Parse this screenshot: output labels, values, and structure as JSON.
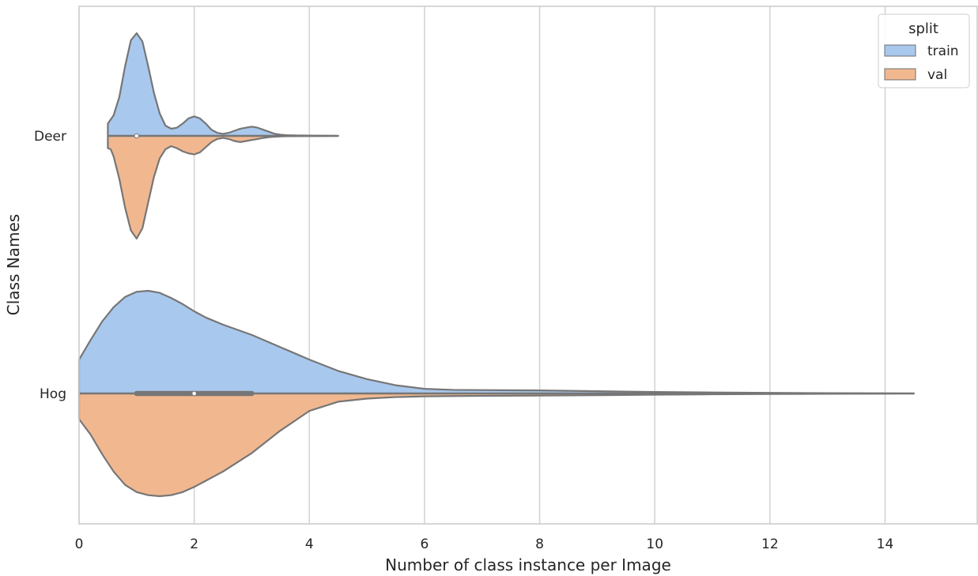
{
  "chart_data": {
    "type": "violin",
    "orientation": "horizontal",
    "split": true,
    "xlabel": "Number of class instance per Image",
    "ylabel": "Class Names",
    "xlim": [
      0,
      15.6
    ],
    "xticks": [
      0,
      2,
      4,
      6,
      8,
      10,
      12,
      14
    ],
    "xtick_labels": [
      "0",
      "2",
      "4",
      "6",
      "8",
      "10",
      "12",
      "14"
    ],
    "grid": "vertical",
    "categories": [
      "Deer",
      "Hog"
    ],
    "legend": {
      "title": "split",
      "placement": "top-right",
      "entries": [
        {
          "label": "train",
          "color": "#a9c8ee"
        },
        {
          "label": "val",
          "color": "#f1b890"
        }
      ]
    },
    "series": [
      {
        "name": "train",
        "color": "#a9c8ee",
        "violins": [
          {
            "category": "Deer",
            "range": [
              0.5,
              4.5
            ],
            "density_x": [
              0.5,
              0.5,
              0.6,
              0.7,
              0.8,
              0.9,
              1.0,
              1.1,
              1.2,
              1.3,
              1.4,
              1.5,
              1.6,
              1.7,
              1.8,
              1.9,
              2.0,
              2.1,
              2.2,
              2.3,
              2.4,
              2.5,
              2.6,
              2.7,
              2.8,
              2.9,
              3.0,
              3.1,
              3.2,
              3.3,
              3.4,
              3.5,
              3.6,
              3.8,
              4.0,
              4.2,
              4.4,
              4.5
            ],
            "density_w": [
              0.0,
              0.12,
              0.2,
              0.38,
              0.68,
              0.93,
              1.0,
              0.92,
              0.68,
              0.42,
              0.22,
              0.1,
              0.07,
              0.08,
              0.12,
              0.17,
              0.19,
              0.17,
              0.12,
              0.06,
              0.03,
              0.02,
              0.03,
              0.05,
              0.07,
              0.08,
              0.09,
              0.08,
              0.06,
              0.04,
              0.02,
              0.012,
              0.007,
              0.004,
              0.003,
              0.002,
              0.001,
              0.0
            ]
          },
          {
            "category": "Hog",
            "range": [
              0.0,
              14.5
            ],
            "density_x": [
              0.0,
              0.2,
              0.4,
              0.6,
              0.8,
              1.0,
              1.2,
              1.4,
              1.6,
              1.8,
              2.0,
              2.2,
              2.5,
              3.0,
              3.5,
              4.0,
              4.5,
              5.0,
              5.5,
              6.0,
              6.5,
              7.0,
              8.0,
              9.0,
              10.0,
              11.0,
              12.0,
              13.0,
              14.0,
              14.5
            ],
            "density_w": [
              0.33,
              0.52,
              0.7,
              0.84,
              0.94,
              0.99,
              1.0,
              0.98,
              0.93,
              0.87,
              0.8,
              0.74,
              0.67,
              0.57,
              0.45,
              0.33,
              0.22,
              0.14,
              0.08,
              0.045,
              0.035,
              0.033,
              0.03,
              0.022,
              0.015,
              0.01,
              0.006,
              0.003,
              0.001,
              0.0
            ]
          }
        ]
      },
      {
        "name": "val",
        "color": "#f1b890",
        "violins": [
          {
            "category": "Deer",
            "range": [
              0.5,
              4.5
            ],
            "density_x": [
              0.5,
              0.5,
              0.55,
              0.6,
              0.7,
              0.8,
              0.9,
              1.0,
              1.1,
              1.2,
              1.3,
              1.4,
              1.5,
              1.6,
              1.7,
              1.8,
              1.9,
              2.0,
              2.1,
              2.2,
              2.3,
              2.4,
              2.5,
              2.6,
              2.7,
              2.8,
              2.9,
              3.0,
              3.1,
              3.2,
              3.3,
              3.4,
              3.5,
              3.6,
              3.8,
              4.0,
              4.2,
              4.4,
              4.5
            ],
            "density_w": [
              0.0,
              0.12,
              0.13,
              0.2,
              0.42,
              0.7,
              0.92,
              1.0,
              0.9,
              0.65,
              0.4,
              0.22,
              0.13,
              0.1,
              0.12,
              0.15,
              0.17,
              0.18,
              0.16,
              0.11,
              0.06,
              0.03,
              0.02,
              0.03,
              0.05,
              0.06,
              0.05,
              0.04,
              0.03,
              0.02,
              0.012,
              0.008,
              0.005,
              0.003,
              0.002,
              0.001,
              0.0007,
              0.0003,
              0.0
            ]
          },
          {
            "category": "Hog",
            "range": [
              0.0,
              14.5
            ],
            "density_x": [
              0.0,
              0.2,
              0.4,
              0.6,
              0.8,
              1.0,
              1.2,
              1.4,
              1.6,
              1.8,
              2.0,
              2.2,
              2.5,
              3.0,
              3.5,
              4.0,
              4.5,
              5.0,
              5.5,
              6.0,
              6.5,
              7.0,
              8.0,
              9.0,
              10.0,
              11.0,
              12.0,
              13.0,
              14.0,
              14.5
            ],
            "density_w": [
              0.25,
              0.4,
              0.59,
              0.76,
              0.89,
              0.96,
              0.99,
              1.0,
              0.99,
              0.96,
              0.91,
              0.85,
              0.76,
              0.58,
              0.36,
              0.17,
              0.08,
              0.05,
              0.035,
              0.028,
              0.025,
              0.023,
              0.02,
              0.017,
              0.012,
              0.008,
              0.005,
              0.003,
              0.001,
              0.0
            ]
          }
        ]
      }
    ],
    "box": [
      {
        "category": "Deer",
        "q1": 1.0,
        "median": 1.0,
        "q3": 1.0,
        "whisker_low": 0.5,
        "whisker_high": 4.5
      },
      {
        "category": "Hog",
        "q1": 1.0,
        "median": 2.0,
        "q3": 3.0,
        "whisker_low": 0.0,
        "whisker_high": 14.5
      }
    ]
  }
}
